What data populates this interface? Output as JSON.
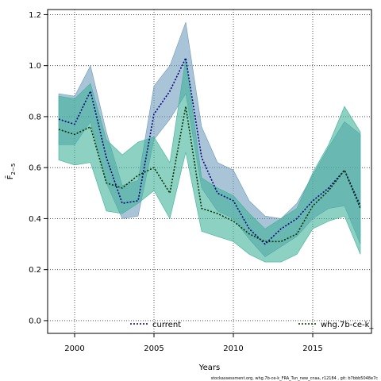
{
  "chart_data": {
    "type": "area",
    "xlabel": "Years",
    "ylabel": "F̄",
    "ylabel_sub": "2−5",
    "xlim": [
      1998.3,
      2018.7
    ],
    "ylim": [
      -0.05,
      1.22
    ],
    "xticks": [
      2000,
      2005,
      2010,
      2015
    ],
    "yticks": [
      0.0,
      0.2,
      0.4,
      0.6,
      0.8,
      1.0,
      1.2
    ],
    "ytick_labels": [
      "0.0",
      "0.2",
      "0.4",
      "0.6",
      "0.8",
      "1.0",
      "1.2"
    ],
    "grid": true,
    "legend_position": "bottom",
    "x": [
      1999,
      2000,
      2001,
      2002,
      2003,
      2004,
      2005,
      2006,
      2007,
      2008,
      2009,
      2010,
      2011,
      2012,
      2013,
      2014,
      2015,
      2016,
      2017,
      2018
    ],
    "series": [
      {
        "name": "current",
        "line_color": "#000080",
        "fill_color": "#6f9bbd",
        "values": [
          0.79,
          0.77,
          0.9,
          0.64,
          0.46,
          0.47,
          0.81,
          0.9,
          1.03,
          0.64,
          0.5,
          0.47,
          0.36,
          0.3,
          0.36,
          0.4,
          0.47,
          0.52,
          0.59,
          0.45
        ],
        "lower": [
          0.69,
          0.69,
          0.78,
          0.54,
          0.4,
          0.41,
          0.71,
          0.79,
          0.89,
          0.52,
          0.43,
          0.4,
          0.32,
          0.25,
          0.29,
          0.33,
          0.4,
          0.44,
          0.45,
          0.3
        ],
        "upper": [
          0.89,
          0.88,
          1.0,
          0.74,
          0.53,
          0.55,
          0.92,
          1.0,
          1.17,
          0.76,
          0.62,
          0.59,
          0.47,
          0.41,
          0.4,
          0.46,
          0.57,
          0.68,
          0.78,
          0.73
        ]
      },
      {
        "name": "whg.7b-ce-k_",
        "line_color": "#003300",
        "fill_color": "#3fb39a",
        "values": [
          0.75,
          0.73,
          0.76,
          0.54,
          0.52,
          0.57,
          0.6,
          0.5,
          0.84,
          0.44,
          0.42,
          0.39,
          0.34,
          0.31,
          0.31,
          0.34,
          0.45,
          0.51,
          0.59,
          0.44
        ],
        "lower": [
          0.63,
          0.61,
          0.62,
          0.43,
          0.42,
          0.46,
          0.51,
          0.4,
          0.66,
          0.35,
          0.33,
          0.31,
          0.26,
          0.23,
          0.23,
          0.26,
          0.36,
          0.39,
          0.41,
          0.26
        ],
        "upper": [
          0.88,
          0.87,
          0.93,
          0.71,
          0.65,
          0.7,
          0.72,
          0.62,
          1.03,
          0.56,
          0.52,
          0.49,
          0.42,
          0.36,
          0.4,
          0.44,
          0.58,
          0.69,
          0.84,
          0.74
        ]
      }
    ]
  },
  "footer": {
    "credit": "stockassessment.org, whg.7b-ce-k_FRA_Tun_new_cnaa, r12184 , git: b7bbb5048e7c"
  }
}
